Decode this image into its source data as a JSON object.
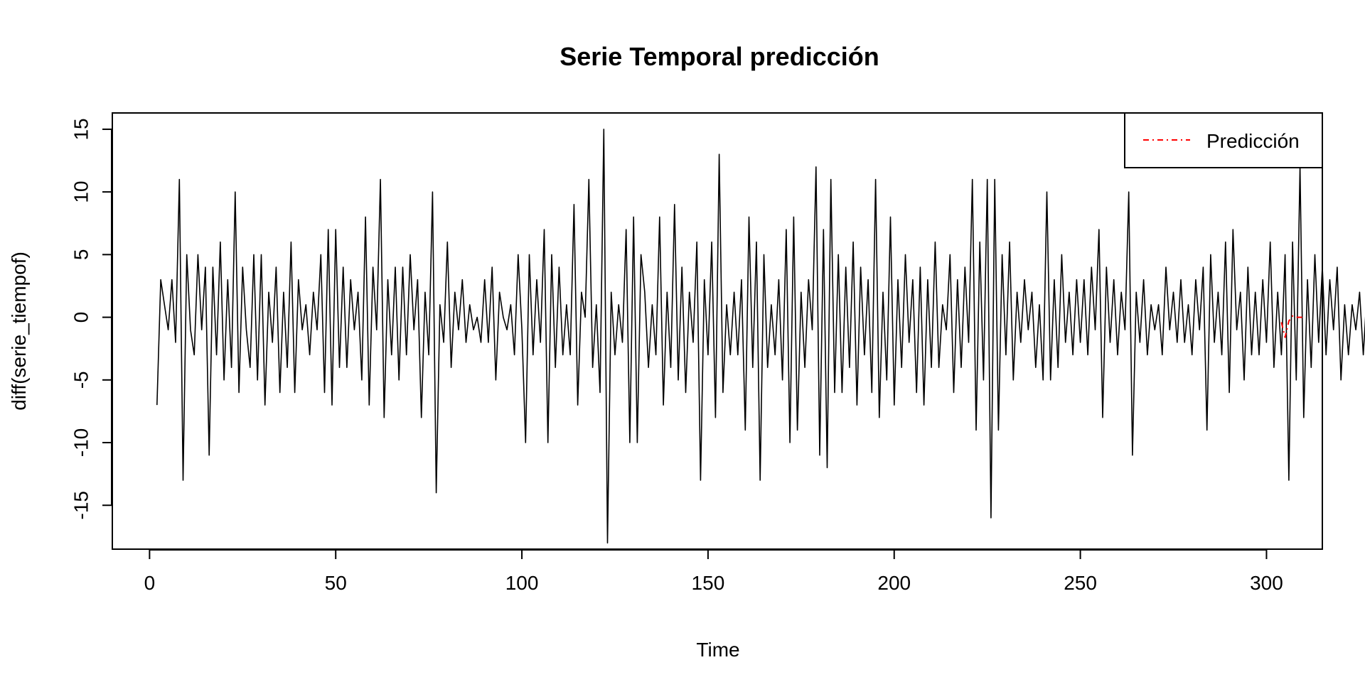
{
  "chart_data": {
    "type": "line",
    "title": "Serie Temporal predicción",
    "xlabel": "Time",
    "ylabel": "diff(serie_tiempof)",
    "xlim": [
      -10,
      315
    ],
    "ylim": [
      -18.5,
      16.3
    ],
    "x_ticks": [
      0,
      50,
      100,
      150,
      200,
      250,
      300
    ],
    "y_ticks": [
      -15,
      -10,
      -5,
      0,
      5,
      10,
      15
    ],
    "legend": {
      "position": "top-right",
      "entries": [
        {
          "label": "Predicción",
          "color": "#ff0000",
          "line_style": "dashdot"
        }
      ]
    },
    "series": [
      {
        "color": "#000000",
        "line_style": "solid",
        "x_start": 2,
        "values": [
          -7,
          3,
          1,
          -1,
          3,
          -2,
          11,
          -13,
          5,
          -1,
          -3,
          5,
          -1,
          4,
          -11,
          4,
          -3,
          6,
          -5,
          3,
          -4,
          10,
          -6,
          4,
          -1,
          -4,
          5,
          -5,
          5,
          -7,
          2,
          -2,
          4,
          -6,
          2,
          -4,
          6,
          -6,
          3,
          -1,
          1,
          -3,
          2,
          -1,
          5,
          -6,
          7,
          -7,
          7,
          -4,
          4,
          -4,
          3,
          -1,
          2,
          -5,
          8,
          -7,
          4,
          -1,
          11,
          -8,
          3,
          -3,
          4,
          -5,
          4,
          -3,
          5,
          -1,
          3,
          -8,
          2,
          -3,
          10,
          -14,
          1,
          -2,
          6,
          -4,
          2,
          -1,
          3,
          -2,
          1,
          -1,
          0,
          -2,
          3,
          -2,
          4,
          -5,
          2,
          0,
          -1,
          1,
          -3,
          5,
          -1,
          -10,
          5,
          -3,
          3,
          -2,
          7,
          -10,
          5,
          -4,
          4,
          -3,
          1,
          -3,
          9,
          -7,
          2,
          0,
          11,
          -4,
          1,
          -6,
          15,
          -18,
          2,
          -3,
          1,
          -2,
          7,
          -10,
          8,
          -10,
          5,
          2,
          -4,
          1,
          -3,
          8,
          -7,
          2,
          -4,
          9,
          -5,
          4,
          -6,
          2,
          -2,
          6,
          -13,
          3,
          -3,
          6,
          -8,
          13,
          -6,
          1,
          -3,
          2,
          -3,
          3,
          -9,
          8,
          -4,
          6,
          -13,
          5,
          -4,
          1,
          -3,
          3,
          -5,
          7,
          -10,
          8,
          -9,
          2,
          -4,
          3,
          -1,
          12,
          -11,
          7,
          -12,
          11,
          -6,
          5,
          -6,
          4,
          -4,
          6,
          -7,
          4,
          -3,
          3,
          -6,
          11,
          -8,
          2,
          -5,
          8,
          -7,
          3,
          -4,
          5,
          -2,
          3,
          -6,
          4,
          -7,
          3,
          -4,
          6,
          -4,
          1,
          -1,
          5,
          -6,
          3,
          -4,
          4,
          -2,
          11,
          -9,
          6,
          -5,
          11,
          -16,
          11,
          -9,
          5,
          -3,
          6,
          -5,
          2,
          -2,
          3,
          -1,
          2,
          -4,
          1,
          -5,
          10,
          -5,
          3,
          -4,
          5,
          -2,
          2,
          -3,
          3,
          -2,
          3,
          -3,
          4,
          -1,
          7,
          -8,
          4,
          -2,
          3,
          -3,
          2,
          -1,
          10,
          -11,
          2,
          -2,
          3,
          -3,
          1,
          -1,
          1,
          -3,
          4,
          -1,
          2,
          -2,
          3,
          -2,
          1,
          -3,
          3,
          -1,
          4,
          -9,
          5,
          -2,
          2,
          -3,
          6,
          -6,
          7,
          -1,
          2,
          -5,
          4,
          -3,
          2,
          -3,
          3,
          -2,
          6,
          -4,
          2,
          -3,
          5,
          -13,
          6,
          -5,
          12,
          -8,
          3,
          -4,
          5,
          -2,
          4,
          -3,
          3,
          -1,
          4,
          -5,
          1,
          -3,
          1,
          -1,
          2,
          -3,
          2,
          -2,
          3,
          -1,
          2,
          -5,
          2,
          -2,
          3,
          -3,
          1,
          -1,
          4,
          -7,
          3,
          -2,
          2,
          -3,
          1,
          -1,
          4,
          -6,
          3,
          -3,
          4,
          -2,
          3,
          -4,
          6,
          -6,
          2,
          -2,
          3,
          -3,
          1,
          -1,
          3,
          -2,
          2,
          -4,
          3,
          -3,
          2,
          -1,
          3,
          -4,
          1,
          -1,
          2,
          -2,
          3,
          -3,
          1,
          -1,
          12,
          -13,
          4,
          -1,
          3,
          -8,
          11,
          -10,
          3,
          -3,
          5,
          -4,
          2,
          -2,
          4,
          -6,
          3,
          -3,
          2,
          -1,
          5,
          -8,
          4,
          -3,
          2,
          -2,
          12,
          -7,
          6,
          -7,
          3,
          -3,
          5,
          -4,
          6,
          -8,
          8,
          -6,
          3,
          -5,
          6,
          -6,
          6,
          -12,
          6,
          -5,
          0,
          1,
          -5,
          7
        ]
      },
      {
        "name": "Predicción",
        "color": "#ff0000",
        "line_style": "dashdot",
        "x": [
          304,
          305,
          306,
          307,
          308,
          309,
          310
        ],
        "values": [
          -0.4,
          -1.6,
          -0.3,
          0.1,
          0,
          0,
          0
        ]
      }
    ]
  }
}
